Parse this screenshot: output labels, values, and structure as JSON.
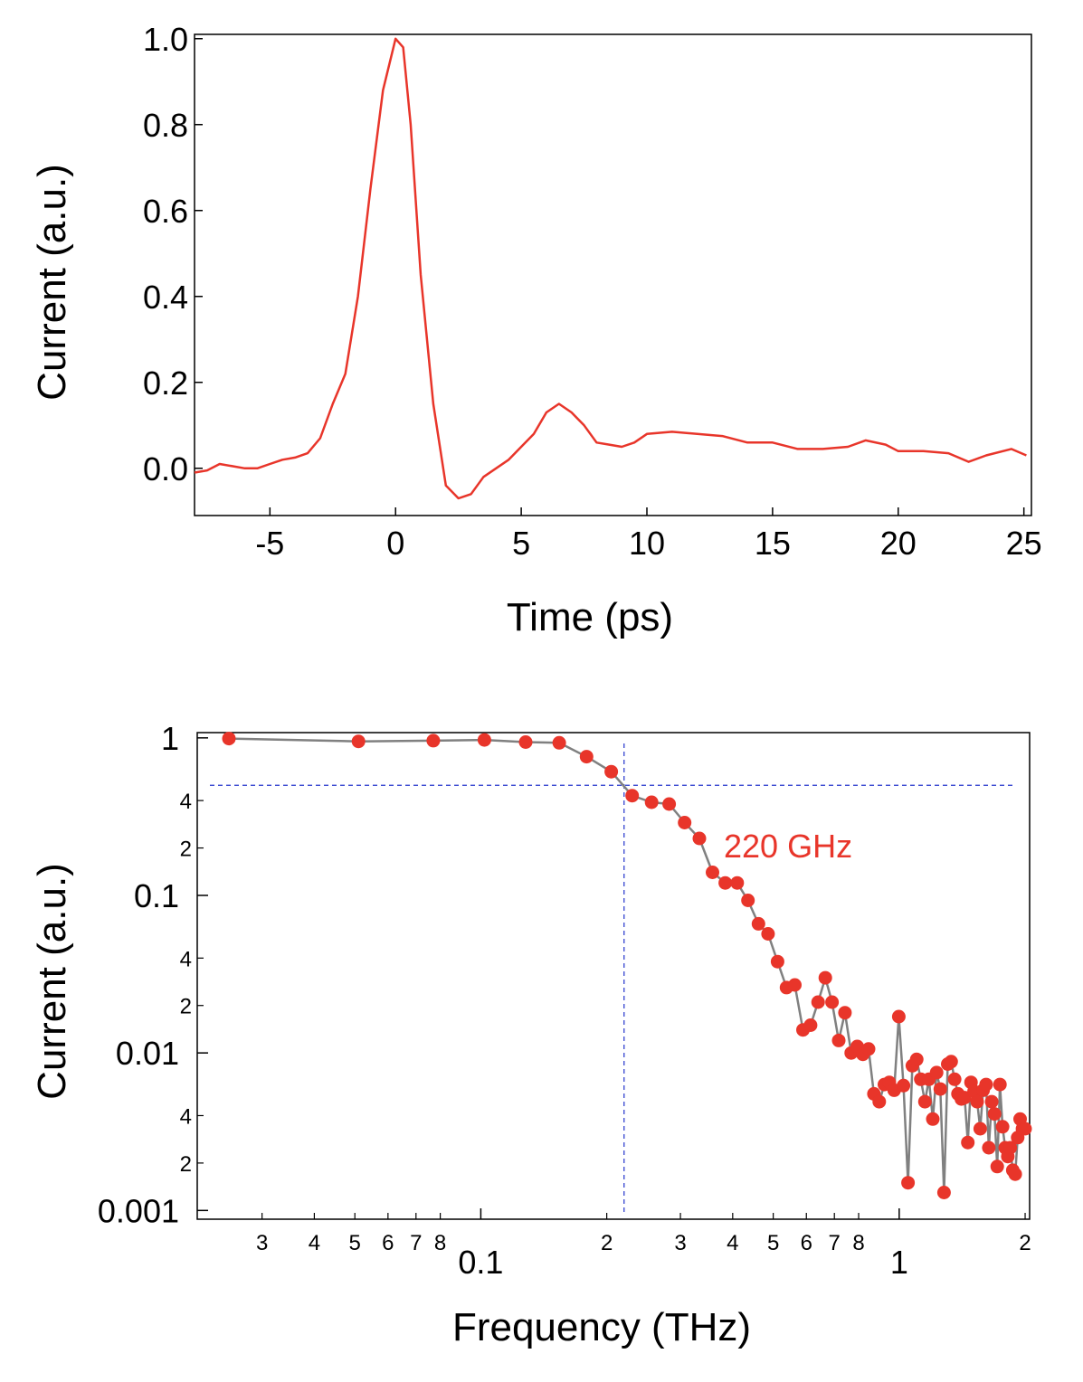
{
  "chart_data": [
    {
      "type": "line",
      "xlabel": "Time (ps)",
      "ylabel": "Current (a.u.)",
      "xlim": [
        -8,
        25.3
      ],
      "ylim": [
        -0.11,
        1.01
      ],
      "x_ticks": [
        "-5",
        "0",
        "5",
        "10",
        "15",
        "20",
        "25"
      ],
      "y_ticks": [
        "0.0",
        "0.2",
        "0.4",
        "0.6",
        "0.8",
        "1.0"
      ],
      "grid": false,
      "line_color": "#e8352a",
      "series": [
        {
          "x": [
            -8,
            -7.5,
            -7,
            -6.5,
            -6,
            -5.5,
            -5,
            -4.5,
            -4,
            -3.5,
            -3,
            -2.5,
            -2,
            -1.5,
            -1,
            -0.5,
            0,
            0.3,
            0.6,
            1,
            1.5,
            2,
            2.5,
            3,
            3.5,
            4,
            4.5,
            5,
            5.5,
            6,
            6.5,
            7,
            7.5,
            8,
            8.5,
            9,
            9.5,
            10,
            11,
            12,
            13,
            14,
            15,
            16,
            17,
            18,
            18.7,
            19.5,
            20,
            21,
            22,
            22.8,
            23.5,
            24.5,
            25.1
          ],
          "y": [
            -0.01,
            -0.005,
            0.01,
            0.005,
            0.0,
            0.0,
            0.01,
            0.02,
            0.025,
            0.035,
            0.07,
            0.15,
            0.22,
            0.4,
            0.65,
            0.88,
            1.0,
            0.98,
            0.8,
            0.45,
            0.15,
            -0.04,
            -0.07,
            -0.06,
            -0.02,
            0.0,
            0.02,
            0.05,
            0.08,
            0.13,
            0.15,
            0.13,
            0.1,
            0.06,
            0.055,
            0.05,
            0.06,
            0.08,
            0.085,
            0.08,
            0.075,
            0.06,
            0.06,
            0.045,
            0.045,
            0.05,
            0.065,
            0.055,
            0.04,
            0.04,
            0.035,
            0.015,
            0.03,
            0.045,
            0.03
          ]
        }
      ]
    },
    {
      "type": "scatter",
      "xlabel": "Frequency (THz)",
      "ylabel": "Current (a.u.)",
      "x_scale": "log",
      "y_scale": "log",
      "xlim": [
        0.021,
        2.05
      ],
      "ylim": [
        0.00088,
        1.08
      ],
      "x_major_ticks": [
        {
          "v": 0.1,
          "label": "0.1"
        },
        {
          "v": 1,
          "label": "1"
        }
      ],
      "x_minor_ticks": [
        {
          "v": 0.03,
          "label": "3"
        },
        {
          "v": 0.04,
          "label": "4"
        },
        {
          "v": 0.05,
          "label": "5"
        },
        {
          "v": 0.06,
          "label": "6"
        },
        {
          "v": 0.07,
          "label": "7"
        },
        {
          "v": 0.08,
          "label": "8"
        },
        {
          "v": 0.2,
          "label": "2"
        },
        {
          "v": 0.3,
          "label": "3"
        },
        {
          "v": 0.4,
          "label": "4"
        },
        {
          "v": 0.5,
          "label": "5"
        },
        {
          "v": 0.6,
          "label": "6"
        },
        {
          "v": 0.7,
          "label": "7"
        },
        {
          "v": 0.8,
          "label": "8"
        },
        {
          "v": 2,
          "label": "2"
        }
      ],
      "y_major_ticks": [
        {
          "v": 1,
          "label": "1"
        },
        {
          "v": 0.1,
          "label": "0.1"
        },
        {
          "v": 0.01,
          "label": "0.01"
        },
        {
          "v": 0.001,
          "label": "0.001"
        }
      ],
      "y_minor_ticks": [
        {
          "v": 0.4,
          "label": "4"
        },
        {
          "v": 0.2,
          "label": "2"
        },
        {
          "v": 0.04,
          "label": "4"
        },
        {
          "v": 0.02,
          "label": "2"
        },
        {
          "v": 0.004,
          "label": "4"
        },
        {
          "v": 0.002,
          "label": "2"
        }
      ],
      "reference_lines": {
        "cutoff_x": 0.22,
        "level_y": 0.5
      },
      "annotation": "220 GHz",
      "marker_color": "#e8352a",
      "connector_color": "#808080",
      "grid": false,
      "series": [
        {
          "x": [
            0.025,
            0.051,
            0.077,
            0.102,
            0.128,
            0.154,
            0.179,
            0.205,
            0.23,
            0.256,
            0.282,
            0.307,
            0.333,
            0.358,
            0.384,
            0.41,
            0.435,
            0.461,
            0.486,
            0.512,
            0.538,
            0.563,
            0.589,
            0.614,
            0.64,
            0.666,
            0.691,
            0.717,
            0.742,
            0.768,
            0.794,
            0.819,
            0.845,
            0.87,
            0.896,
            0.922,
            0.947,
            0.973,
            0.998,
            1.024,
            1.05,
            1.075,
            1.101,
            1.126,
            1.152,
            1.178,
            1.203,
            1.229,
            1.254,
            1.28,
            1.306,
            1.331,
            1.357,
            1.382,
            1.408,
            1.434,
            1.459,
            1.485,
            1.51,
            1.536,
            1.562,
            1.587,
            1.613,
            1.638,
            1.664,
            1.69,
            1.715,
            1.741,
            1.766,
            1.792,
            1.818,
            1.843,
            1.869,
            1.894,
            1.92,
            1.946,
            1.971,
            2.0
          ],
          "y": [
            0.99,
            0.95,
            0.96,
            0.97,
            0.94,
            0.93,
            0.76,
            0.61,
            0.43,
            0.39,
            0.38,
            0.29,
            0.23,
            0.14,
            0.12,
            0.12,
            0.093,
            0.066,
            0.057,
            0.038,
            0.026,
            0.027,
            0.014,
            0.015,
            0.021,
            0.03,
            0.021,
            0.012,
            0.018,
            0.01,
            0.011,
            0.0098,
            0.0106,
            0.0055,
            0.0049,
            0.0063,
            0.0065,
            0.0058,
            0.017,
            0.0062,
            0.0015,
            0.0083,
            0.0091,
            0.0068,
            0.0049,
            0.0068,
            0.0038,
            0.0075,
            0.0059,
            0.0013,
            0.0085,
            0.0088,
            0.0068,
            0.0055,
            0.0051,
            0.0052,
            0.0027,
            0.0065,
            0.0057,
            0.0049,
            0.0033,
            0.0058,
            0.0063,
            0.0025,
            0.0049,
            0.0041,
            0.0019,
            0.0063,
            0.0034,
            0.0025,
            0.0022,
            0.0025,
            0.0018,
            0.0017,
            0.0029,
            0.0038,
            0.0033,
            0.0033
          ]
        }
      ]
    }
  ]
}
